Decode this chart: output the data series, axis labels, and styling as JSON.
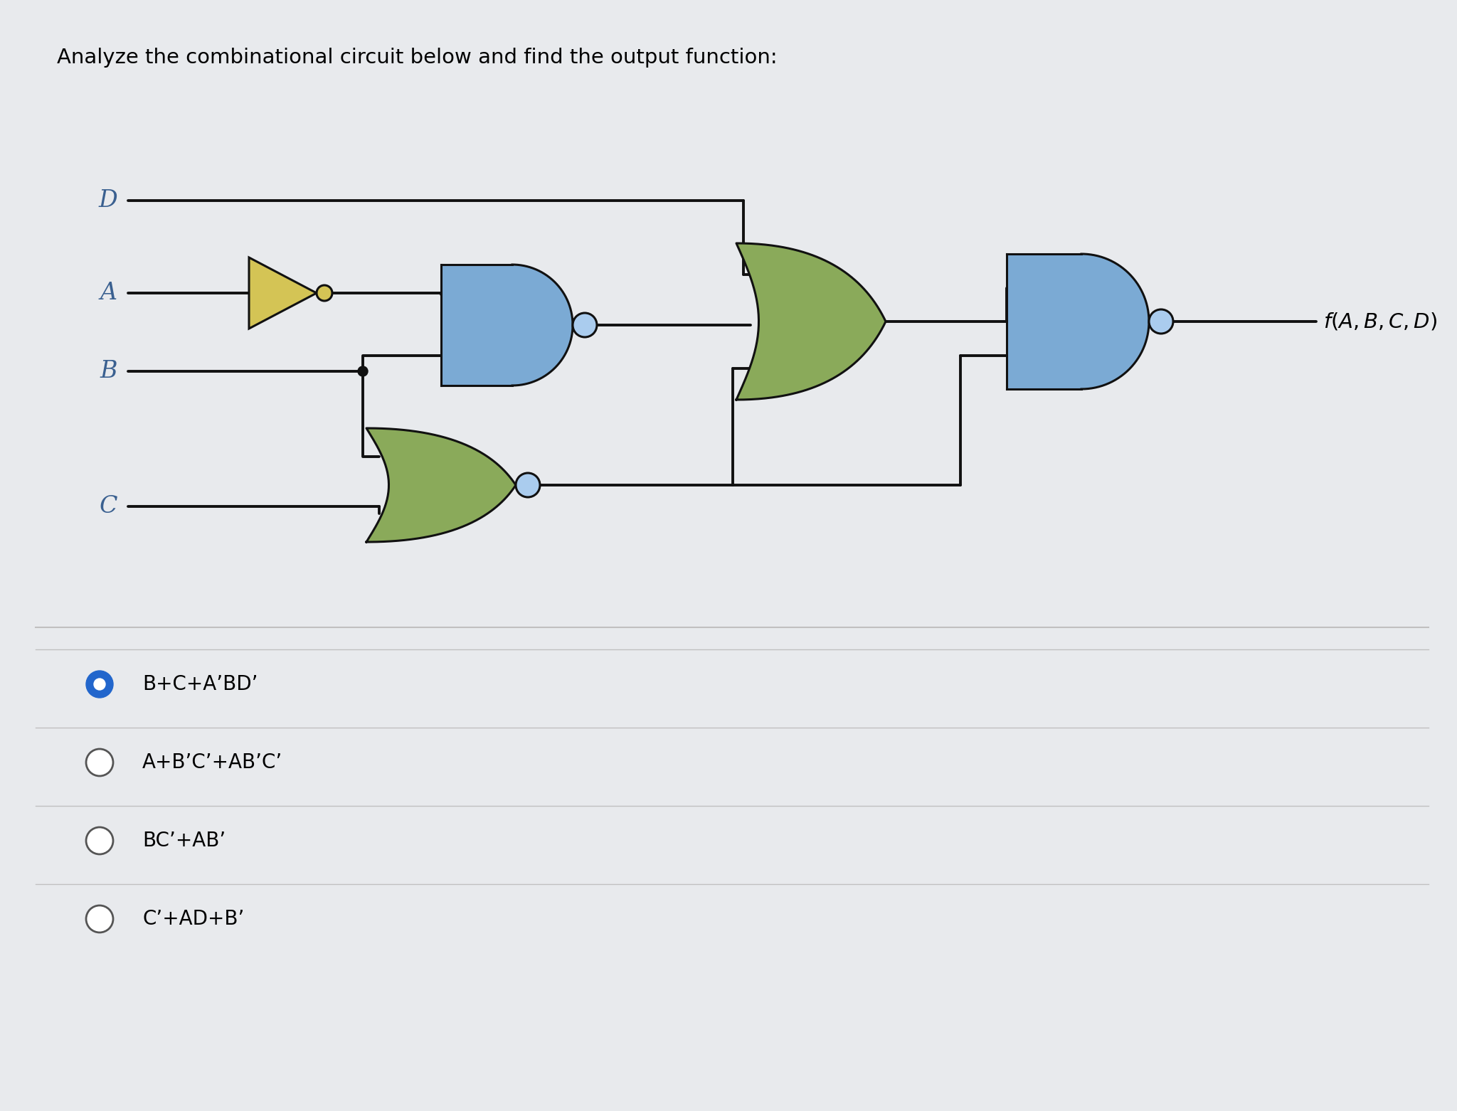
{
  "title": "Analyze the combinational circuit below and find the output function:",
  "bg_color": "#e8eaed",
  "and_color": "#7baad4",
  "or_color": "#8aaa5a",
  "not_color": "#d4c455",
  "not_bubble_color": "#d4c455",
  "wire_color": "#111111",
  "nand_bubble_color": "#aaccee",
  "nor_bubble_color": "#aaccee",
  "final_bubble_color": "#aaccee",
  "border_color": "#111111",
  "label_color": "#3a6090",
  "options": [
    {
      "text": "B+C+A’BD’",
      "selected": true
    },
    {
      "text": "A+B’C’+AB’C’",
      "selected": false
    },
    {
      "text": "BC’+AB’",
      "selected": false
    },
    {
      "text": "C’+AD+B’",
      "selected": false
    }
  ],
  "radio_selected_color": "#2266cc",
  "radio_border_color": "#555555",
  "separator_color": "#c0c0c0",
  "fig_w": 20.48,
  "fig_h": 15.62
}
